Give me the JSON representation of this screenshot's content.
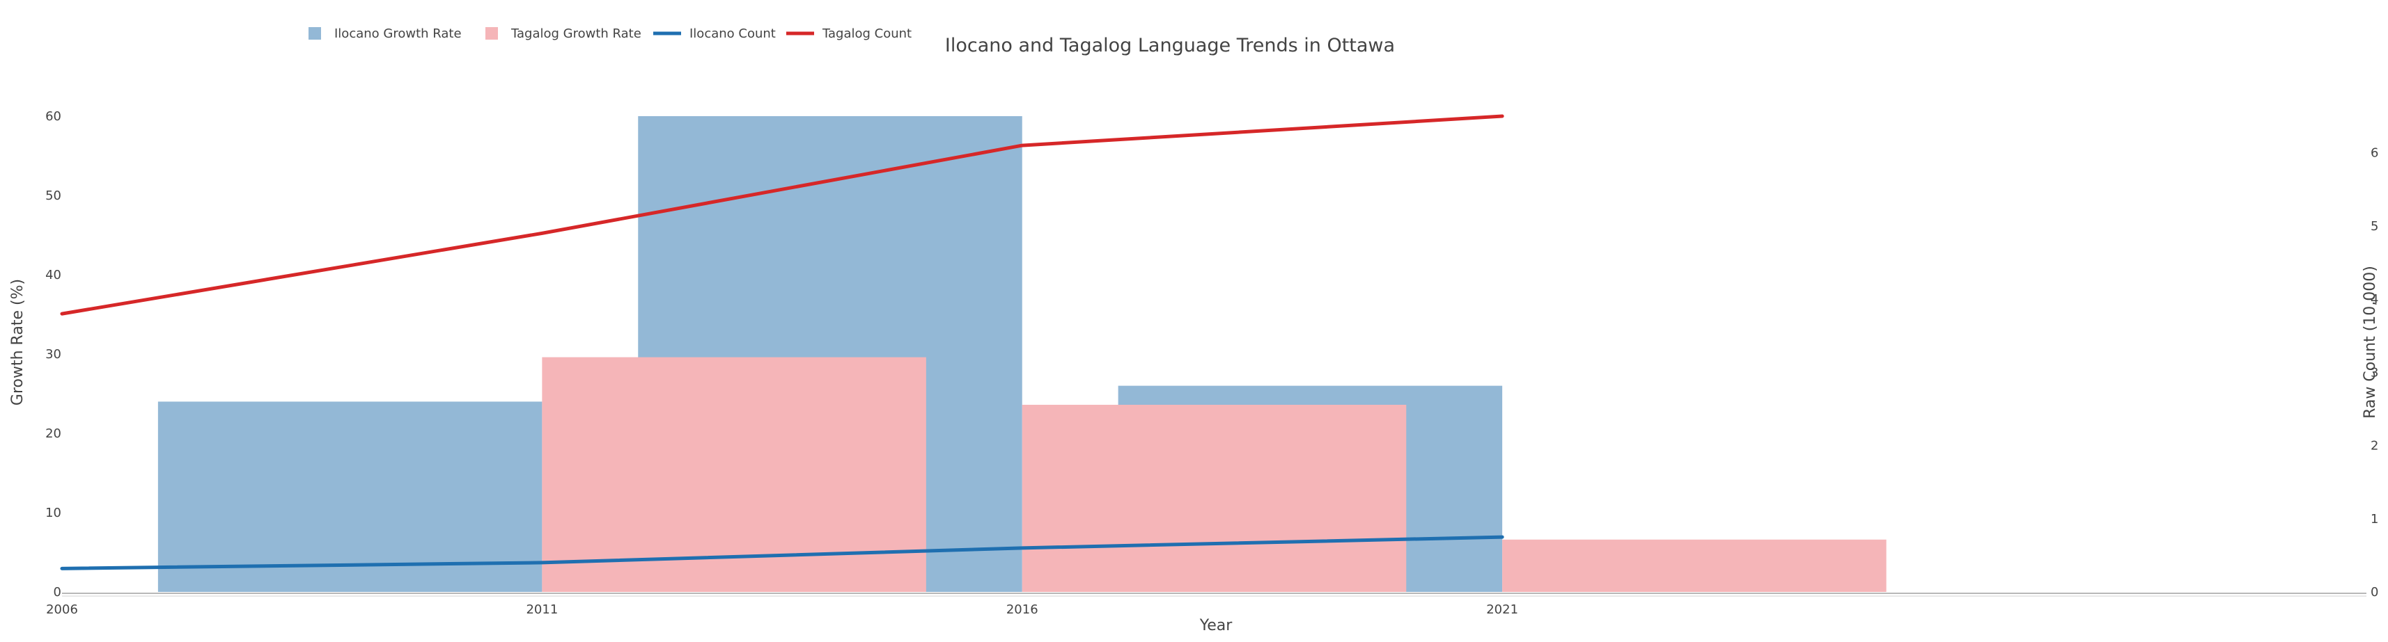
{
  "chart_data": {
    "type": "bar",
    "title": "Ilocano and Tagalog Language Trends in Ottawa",
    "xlabel": "Year",
    "ylabel": "Growth Rate (%)",
    "y2label": "Raw Count (10,000)",
    "x": [
      2006,
      2011,
      2016,
      2021
    ],
    "x_ticks": [
      "2006",
      "2011",
      "2016",
      "2021"
    ],
    "xlim": [
      2006,
      2030
    ],
    "ylim": [
      0,
      60
    ],
    "y_ticks": [
      "0",
      "10",
      "20",
      "30",
      "40",
      "50",
      "60"
    ],
    "y2lim": [
      0,
      6.5
    ],
    "y2_ticks": [
      "0",
      "1",
      "2",
      "3",
      "4",
      "5",
      "6"
    ],
    "grid": false,
    "legend_position": "top-left",
    "bar_series": [
      {
        "name": "Ilocano Growth Rate",
        "x": [
          2011,
          2016,
          2021
        ],
        "values": [
          24,
          60,
          26
        ],
        "color": "#93b8d6"
      },
      {
        "name": "Tagalog Growth Rate",
        "x": [
          2011,
          2016,
          2021
        ],
        "values": [
          29.6,
          23.6,
          6.6
        ],
        "color": "#f5b5b8"
      }
    ],
    "line_series": [
      {
        "name": "Ilocano Count",
        "x": [
          2006,
          2011,
          2016,
          2021
        ],
        "values": [
          0.32,
          0.4,
          0.6,
          0.75
        ],
        "color": "#1f6fb0"
      },
      {
        "name": "Tagalog Count",
        "x": [
          2006,
          2011,
          2016,
          2021
        ],
        "values": [
          3.8,
          4.9,
          6.1,
          6.5
        ],
        "color": "#d62728"
      }
    ]
  }
}
